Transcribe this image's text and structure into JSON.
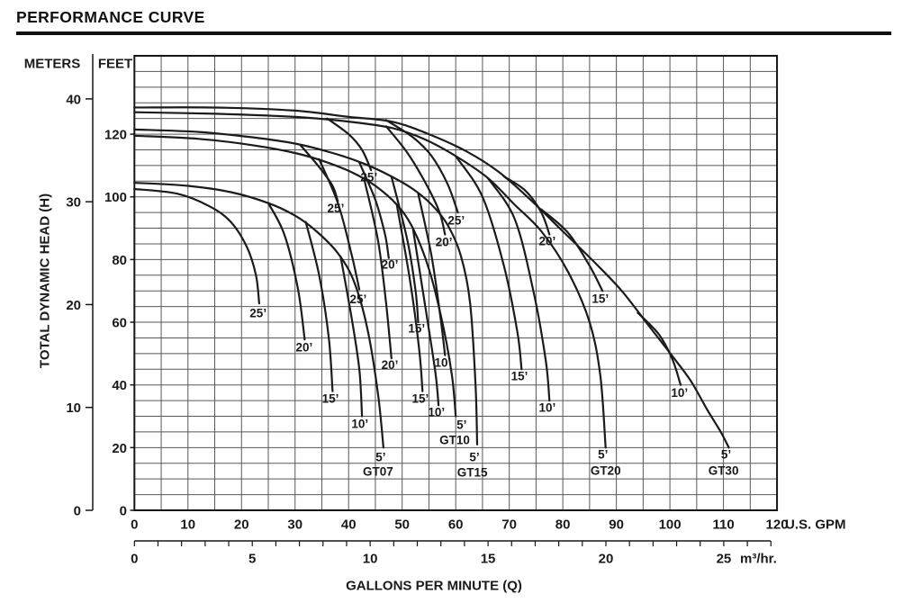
{
  "title": "PERFORMANCE CURVE",
  "y_axis": {
    "meters_header": "METERS",
    "feet_header": "FEET",
    "title": "TOTAL DYNAMIC HEAD (H)",
    "meters_ticks": [
      0,
      10,
      20,
      30,
      40
    ],
    "feet_ticks": [
      0,
      20,
      40,
      60,
      80,
      100,
      120
    ]
  },
  "x_axis": {
    "title": "GALLONS PER MINUTE (Q)",
    "gpm_unit": "U.S. GPM",
    "m3hr_unit": "m³/hr.",
    "gpm_ticks": [
      0,
      10,
      20,
      30,
      40,
      50,
      60,
      70,
      80,
      90,
      100,
      110,
      120
    ],
    "m3hr_ticks": [
      0,
      5,
      10,
      15,
      20,
      25
    ]
  },
  "colors": {
    "curve": "#1b1b1b",
    "grid": "#585858",
    "border": "#161616",
    "text": "#1a1a1a",
    "rule": "#111111"
  },
  "chart_data": {
    "type": "line",
    "title": "PERFORMANCE CURVE",
    "xlabel": "GALLONS PER MINUTE (Q)",
    "ylabel": "TOTAL DYNAMIC HEAD (H)",
    "x_unit_primary": "U.S. GPM",
    "x_unit_secondary": "m³/hr.",
    "y_unit_primary": "FEET",
    "y_unit_secondary": "METERS",
    "x_range_gpm": [
      0,
      120
    ],
    "y_range_feet": [
      0,
      145
    ],
    "grid_step_gpm": 5,
    "grid_step_feet": 5,
    "legend_position": "none",
    "grid": true,
    "series": [
      {
        "pump": "GT07",
        "suction_lift": "5’",
        "points": [
          [
            0,
            104.5
          ],
          [
            10,
            103.5
          ],
          [
            18,
            101.5
          ],
          [
            25,
            98
          ],
          [
            30,
            94
          ],
          [
            34,
            89
          ],
          [
            38,
            82
          ],
          [
            41,
            73
          ],
          [
            43.5,
            58
          ],
          [
            45.5,
            37
          ],
          [
            46.5,
            20
          ]
        ]
      },
      {
        "pump": "GT07",
        "suction_lift": "25’",
        "points": [
          [
            0,
            102.5
          ],
          [
            8,
            101
          ],
          [
            14,
            97
          ],
          [
            18,
            92
          ],
          [
            21,
            84
          ],
          [
            22.7,
            75
          ],
          [
            23.3,
            66
          ]
        ]
      },
      {
        "pump": "GT07",
        "suction_lift": "20’",
        "points": [
          [
            25,
            98
          ],
          [
            28,
            88
          ],
          [
            30.5,
            71
          ],
          [
            31.8,
            54.5
          ]
        ]
      },
      {
        "pump": "GT07",
        "suction_lift": "15’",
        "points": [
          [
            32,
            92
          ],
          [
            34.5,
            75
          ],
          [
            36.3,
            55
          ],
          [
            37,
            38
          ]
        ]
      },
      {
        "pump": "GT07",
        "suction_lift": "10’",
        "points": [
          [
            38.5,
            81
          ],
          [
            40.5,
            62
          ],
          [
            42,
            45
          ],
          [
            42.5,
            30
          ]
        ]
      },
      {
        "pump": "GT10",
        "suction_lift": "5’",
        "points": [
          [
            0,
            119.5
          ],
          [
            12,
            118.5
          ],
          [
            22,
            116.5
          ],
          [
            30,
            114
          ],
          [
            36,
            111
          ],
          [
            41,
            107.5
          ],
          [
            45,
            103.5
          ],
          [
            49,
            97.5
          ],
          [
            52,
            90
          ],
          [
            55,
            77
          ],
          [
            57.5,
            60
          ],
          [
            59.3,
            43
          ],
          [
            60,
            30
          ]
        ]
      },
      {
        "pump": "GT10",
        "suction_lift": "25’",
        "points": [
          [
            34.5,
            112
          ],
          [
            38,
            98
          ],
          [
            40.5,
            82
          ],
          [
            42,
            70.5
          ]
        ]
      },
      {
        "pump": "GT10",
        "suction_lift": "20’",
        "points": [
          [
            43,
            105
          ],
          [
            45.5,
            86
          ],
          [
            47,
            66
          ],
          [
            48,
            48.5
          ]
        ]
      },
      {
        "pump": "GT10",
        "suction_lift": "15’",
        "points": [
          [
            49,
            97.5
          ],
          [
            51.5,
            73
          ],
          [
            53.2,
            51
          ],
          [
            53.8,
            38
          ]
        ]
      },
      {
        "pump": "GT10",
        "suction_lift": "10’",
        "points": [
          [
            52,
            90
          ],
          [
            54.5,
            63
          ],
          [
            56.2,
            44
          ],
          [
            56.8,
            33.5
          ]
        ]
      },
      {
        "pump": "GT15",
        "suction_lift": "5’",
        "points": [
          [
            0,
            121.5
          ],
          [
            12,
            120.7
          ],
          [
            22,
            119
          ],
          [
            30,
            117
          ],
          [
            37,
            114
          ],
          [
            43,
            110.5
          ],
          [
            48,
            106.5
          ],
          [
            52,
            102.5
          ],
          [
            55.5,
            97.5
          ],
          [
            58.5,
            91
          ],
          [
            61,
            81
          ],
          [
            62.7,
            66
          ],
          [
            63.7,
            40
          ],
          [
            64,
            21
          ]
        ]
      },
      {
        "pump": "GT15",
        "suction_lift": "25’",
        "points": [
          [
            31,
            116.5
          ],
          [
            34.5,
            109.5
          ],
          [
            37,
            103.5
          ],
          [
            38,
            98.5
          ]
        ]
      },
      {
        "pump": "GT15",
        "suction_lift": "20’",
        "points": [
          [
            42,
            111
          ],
          [
            45,
            99
          ],
          [
            46.8,
            88
          ],
          [
            47.5,
            80.5
          ]
        ]
      },
      {
        "pump": "GT15",
        "suction_lift": "15’",
        "points": [
          [
            48,
            106.5
          ],
          [
            51,
            86
          ],
          [
            52.5,
            70
          ],
          [
            53,
            60
          ]
        ]
      },
      {
        "pump": "GT15",
        "suction_lift": "10’",
        "points": [
          [
            53,
            101
          ],
          [
            55.5,
            81
          ],
          [
            57.2,
            61
          ],
          [
            58,
            49.5
          ]
        ]
      },
      {
        "pump": "GT20",
        "suction_lift": "5’",
        "points": [
          [
            0,
            127
          ],
          [
            15,
            126.5
          ],
          [
            30,
            125.5
          ],
          [
            40,
            124
          ],
          [
            48,
            122
          ],
          [
            54,
            118.5
          ],
          [
            60,
            113
          ],
          [
            66,
            106
          ],
          [
            71,
            97.5
          ],
          [
            76,
            89
          ],
          [
            81,
            76
          ],
          [
            85,
            60
          ],
          [
            87,
            43
          ],
          [
            88,
            20
          ]
        ]
      },
      {
        "pump": "GT20",
        "suction_lift": "25’",
        "points": [
          [
            36,
            125
          ],
          [
            40,
            120
          ],
          [
            42.5,
            115
          ],
          [
            44.2,
            108.5
          ]
        ]
      },
      {
        "pump": "GT20",
        "suction_lift": "20’",
        "points": [
          [
            47,
            122.5
          ],
          [
            51,
            114
          ],
          [
            54.5,
            104
          ],
          [
            57,
            95
          ],
          [
            58,
            88
          ]
        ]
      },
      {
        "pump": "GT20",
        "suction_lift": "15’",
        "points": [
          [
            60,
            113
          ],
          [
            65,
            100
          ],
          [
            69,
            78
          ],
          [
            71.5,
            57
          ],
          [
            72.3,
            45
          ]
        ]
      },
      {
        "pump": "GT20",
        "suction_lift": "10’",
        "points": [
          [
            66,
            106
          ],
          [
            71,
            93
          ],
          [
            74.5,
            70
          ],
          [
            76.8,
            48
          ],
          [
            77.5,
            35
          ]
        ]
      },
      {
        "pump": "GT30",
        "suction_lift": "5’",
        "points": [
          [
            0,
            128.5
          ],
          [
            15,
            128.5
          ],
          [
            30,
            127.5
          ],
          [
            40,
            125.5
          ],
          [
            48,
            124
          ],
          [
            55,
            120
          ],
          [
            62,
            114.5
          ],
          [
            68,
            108
          ],
          [
            74,
            99
          ],
          [
            80,
            89
          ],
          [
            86,
            79
          ],
          [
            91,
            70
          ],
          [
            96,
            59
          ],
          [
            101,
            48
          ],
          [
            104,
            41
          ],
          [
            107,
            32
          ],
          [
            109.5,
            25
          ],
          [
            111,
            20
          ]
        ]
      },
      {
        "pump": "GT30",
        "suction_lift": "25’",
        "points": [
          [
            47,
            124.5
          ],
          [
            52,
            119
          ],
          [
            55.5,
            113
          ],
          [
            58.5,
            104
          ],
          [
            60.4,
            95
          ]
        ]
      },
      {
        "pump": "GT30",
        "suction_lift": "20’",
        "points": [
          [
            69,
            106.5
          ],
          [
            73,
            102
          ],
          [
            76,
            95
          ],
          [
            77.5,
            88
          ]
        ]
      },
      {
        "pump": "GT30",
        "suction_lift": "15’",
        "points": [
          [
            76,
            96
          ],
          [
            81,
            88.5
          ],
          [
            85,
            78
          ],
          [
            87.4,
            70
          ]
        ]
      },
      {
        "pump": "GT30",
        "suction_lift": "10’",
        "points": [
          [
            94,
            63
          ],
          [
            98,
            56
          ],
          [
            100.5,
            48
          ],
          [
            102,
            40
          ]
        ]
      }
    ],
    "labels": [
      {
        "text": "25’",
        "gpm": 23.1,
        "ft": 62.9
      },
      {
        "text": "20’",
        "gpm": 31.7,
        "ft": 52.0
      },
      {
        "text": "15’",
        "gpm": 36.6,
        "ft": 35.6
      },
      {
        "text": "10’",
        "gpm": 42.1,
        "ft": 27.6
      },
      {
        "text": "5’",
        "gpm": 46.0,
        "ft": 17.0
      },
      {
        "text": "GT07",
        "gpm": 45.5,
        "ft": 12.4
      },
      {
        "text": "25’",
        "gpm": 41.8,
        "ft": 67.3
      },
      {
        "text": "20’",
        "gpm": 47.7,
        "ft": 46.3
      },
      {
        "text": "15’",
        "gpm": 53.4,
        "ft": 35.6
      },
      {
        "text": "10’",
        "gpm": 56.4,
        "ft": 31.3
      },
      {
        "text": "5’",
        "gpm": 61.1,
        "ft": 27.3
      },
      {
        "text": "GT10",
        "gpm": 59.8,
        "ft": 22.4
      },
      {
        "text": "25’",
        "gpm": 37.6,
        "ft": 96.3
      },
      {
        "text": "20’",
        "gpm": 47.7,
        "ft": 78.4
      },
      {
        "text": "15’",
        "gpm": 52.7,
        "ft": 58.0
      },
      {
        "text": "10’",
        "gpm": 57.6,
        "ft": 47.1
      },
      {
        "text": "5’",
        "gpm": 63.5,
        "ft": 17.0
      },
      {
        "text": "GT15",
        "gpm": 63.1,
        "ft": 12.1
      },
      {
        "text": "25’",
        "gpm": 43.8,
        "ft": 106.3
      },
      {
        "text": "20’",
        "gpm": 57.8,
        "ft": 85.6
      },
      {
        "text": "15’",
        "gpm": 71.9,
        "ft": 42.8
      },
      {
        "text": "10’",
        "gpm": 77.1,
        "ft": 32.8
      },
      {
        "text": "5’",
        "gpm": 87.5,
        "ft": 17.8
      },
      {
        "text": "GT20",
        "gpm": 88.0,
        "ft": 12.6
      },
      {
        "text": "25’",
        "gpm": 60.1,
        "ft": 92.5
      },
      {
        "text": "20’",
        "gpm": 77.1,
        "ft": 85.9
      },
      {
        "text": "15’",
        "gpm": 87.0,
        "ft": 67.5
      },
      {
        "text": "10’",
        "gpm": 101.8,
        "ft": 37.4
      },
      {
        "text": "5’",
        "gpm": 110.5,
        "ft": 17.8
      },
      {
        "text": "GT30",
        "gpm": 110.0,
        "ft": 12.6
      }
    ]
  }
}
